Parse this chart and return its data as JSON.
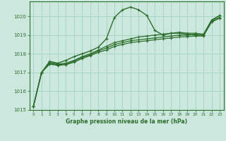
{
  "background_color": "#cce8de",
  "grid_color": "#a8d5c5",
  "line_color": "#2d6e2d",
  "xlabel": "Graphe pression niveau de la mer (hPa)",
  "ylim": [
    1015.0,
    1020.8
  ],
  "xlim": [
    -0.5,
    23.5
  ],
  "yticks": [
    1015,
    1016,
    1017,
    1018,
    1019,
    1020
  ],
  "xticks": [
    0,
    1,
    2,
    3,
    4,
    5,
    6,
    7,
    8,
    9,
    10,
    11,
    12,
    13,
    14,
    15,
    16,
    17,
    18,
    19,
    20,
    21,
    22,
    23
  ],
  "series": [
    {
      "x": [
        0,
        1,
        2,
        3,
        4,
        5,
        6,
        7,
        8,
        9,
        10,
        11,
        12,
        13,
        14,
        15,
        16,
        17,
        18,
        19,
        20,
        21,
        22,
        23
      ],
      "y": [
        1015.2,
        1017.0,
        1017.6,
        1017.5,
        1017.65,
        1017.85,
        1018.0,
        1018.15,
        1018.35,
        1018.8,
        1019.95,
        1020.35,
        1020.5,
        1020.35,
        1020.05,
        1019.25,
        1019.0,
        1019.1,
        1019.1,
        1019.05,
        1019.0,
        1019.0,
        1019.8,
        1020.05
      ],
      "marker": true,
      "lw": 1.0
    },
    {
      "x": [
        0,
        1,
        2,
        3,
        4,
        5,
        6,
        7,
        8,
        9,
        10,
        11,
        12,
        13,
        14,
        15,
        16,
        17,
        18,
        19,
        20,
        21,
        22,
        23
      ],
      "y": [
        1015.2,
        1017.0,
        1017.55,
        1017.45,
        1017.5,
        1017.65,
        1017.85,
        1018.0,
        1018.2,
        1018.4,
        1018.6,
        1018.7,
        1018.8,
        1018.9,
        1018.95,
        1019.0,
        1019.05,
        1019.1,
        1019.15,
        1019.1,
        1019.1,
        1019.05,
        1019.8,
        1020.05
      ],
      "marker": true,
      "lw": 0.9
    },
    {
      "x": [
        0,
        1,
        2,
        3,
        4,
        5,
        6,
        7,
        8,
        9,
        10,
        11,
        12,
        13,
        14,
        15,
        16,
        17,
        18,
        19,
        20,
        21,
        22,
        23
      ],
      "y": [
        1015.2,
        1017.0,
        1017.5,
        1017.42,
        1017.45,
        1017.6,
        1017.8,
        1017.95,
        1018.15,
        1018.3,
        1018.5,
        1018.6,
        1018.7,
        1018.75,
        1018.8,
        1018.85,
        1018.9,
        1018.95,
        1019.0,
        1019.0,
        1019.05,
        1019.0,
        1019.75,
        1019.95
      ],
      "marker": true,
      "lw": 0.9
    },
    {
      "x": [
        0,
        1,
        2,
        3,
        4,
        5,
        6,
        7,
        8,
        9,
        10,
        11,
        12,
        13,
        14,
        15,
        16,
        17,
        18,
        19,
        20,
        21,
        22,
        23
      ],
      "y": [
        1015.2,
        1017.0,
        1017.45,
        1017.38,
        1017.42,
        1017.55,
        1017.75,
        1017.9,
        1018.08,
        1018.2,
        1018.4,
        1018.5,
        1018.6,
        1018.65,
        1018.7,
        1018.75,
        1018.8,
        1018.85,
        1018.9,
        1018.92,
        1018.95,
        1018.95,
        1019.7,
        1019.9
      ],
      "marker": true,
      "lw": 0.9
    }
  ]
}
